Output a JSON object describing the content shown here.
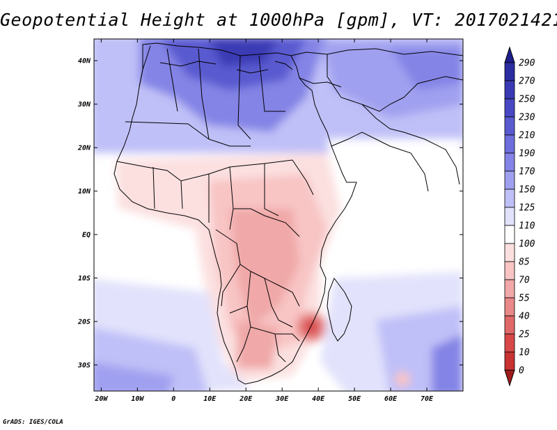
{
  "title": "Geopotential Height at 1000hPa [gpm], VT: 2017021421",
  "credit": "GrADS: IGES/COLA",
  "map": {
    "lon_range": [
      -22,
      80
    ],
    "lat_range": [
      -36,
      45
    ],
    "lon_ticks": [
      {
        "value": -20,
        "label": "20W"
      },
      {
        "value": -10,
        "label": "10W"
      },
      {
        "value": 0,
        "label": "0"
      },
      {
        "value": 10,
        "label": "10E"
      },
      {
        "value": 20,
        "label": "20E"
      },
      {
        "value": 30,
        "label": "30E"
      },
      {
        "value": 40,
        "label": "40E"
      },
      {
        "value": 50,
        "label": "50E"
      },
      {
        "value": 60,
        "label": "60E"
      },
      {
        "value": 70,
        "label": "70E"
      }
    ],
    "lat_ticks": [
      {
        "value": 40,
        "label": "40N"
      },
      {
        "value": 30,
        "label": "30N"
      },
      {
        "value": 20,
        "label": "20N"
      },
      {
        "value": 10,
        "label": "10N"
      },
      {
        "value": 0,
        "label": "EQ"
      },
      {
        "value": -10,
        "label": "10S"
      },
      {
        "value": -20,
        "label": "20S"
      },
      {
        "value": -30,
        "label": "30S"
      }
    ]
  },
  "colorbar": {
    "levels": [
      "290",
      "270",
      "250",
      "230",
      "210",
      "190",
      "170",
      "150",
      "125",
      "110",
      "100",
      "85",
      "70",
      "55",
      "40",
      "25",
      "10",
      "0"
    ],
    "colors": [
      "#1e1e8c",
      "#2c2ca2",
      "#3a3ab4",
      "#4848c4",
      "#5a5ad0",
      "#6e6edc",
      "#8484e6",
      "#a0a0f0",
      "#c0c0f8",
      "#e2e2fc",
      "#ffffff",
      "#fce0e0",
      "#f8c4c4",
      "#f0a8a8",
      "#e88888",
      "#e06868",
      "#d84848",
      "#c83232",
      "#a01c1c"
    ]
  }
}
